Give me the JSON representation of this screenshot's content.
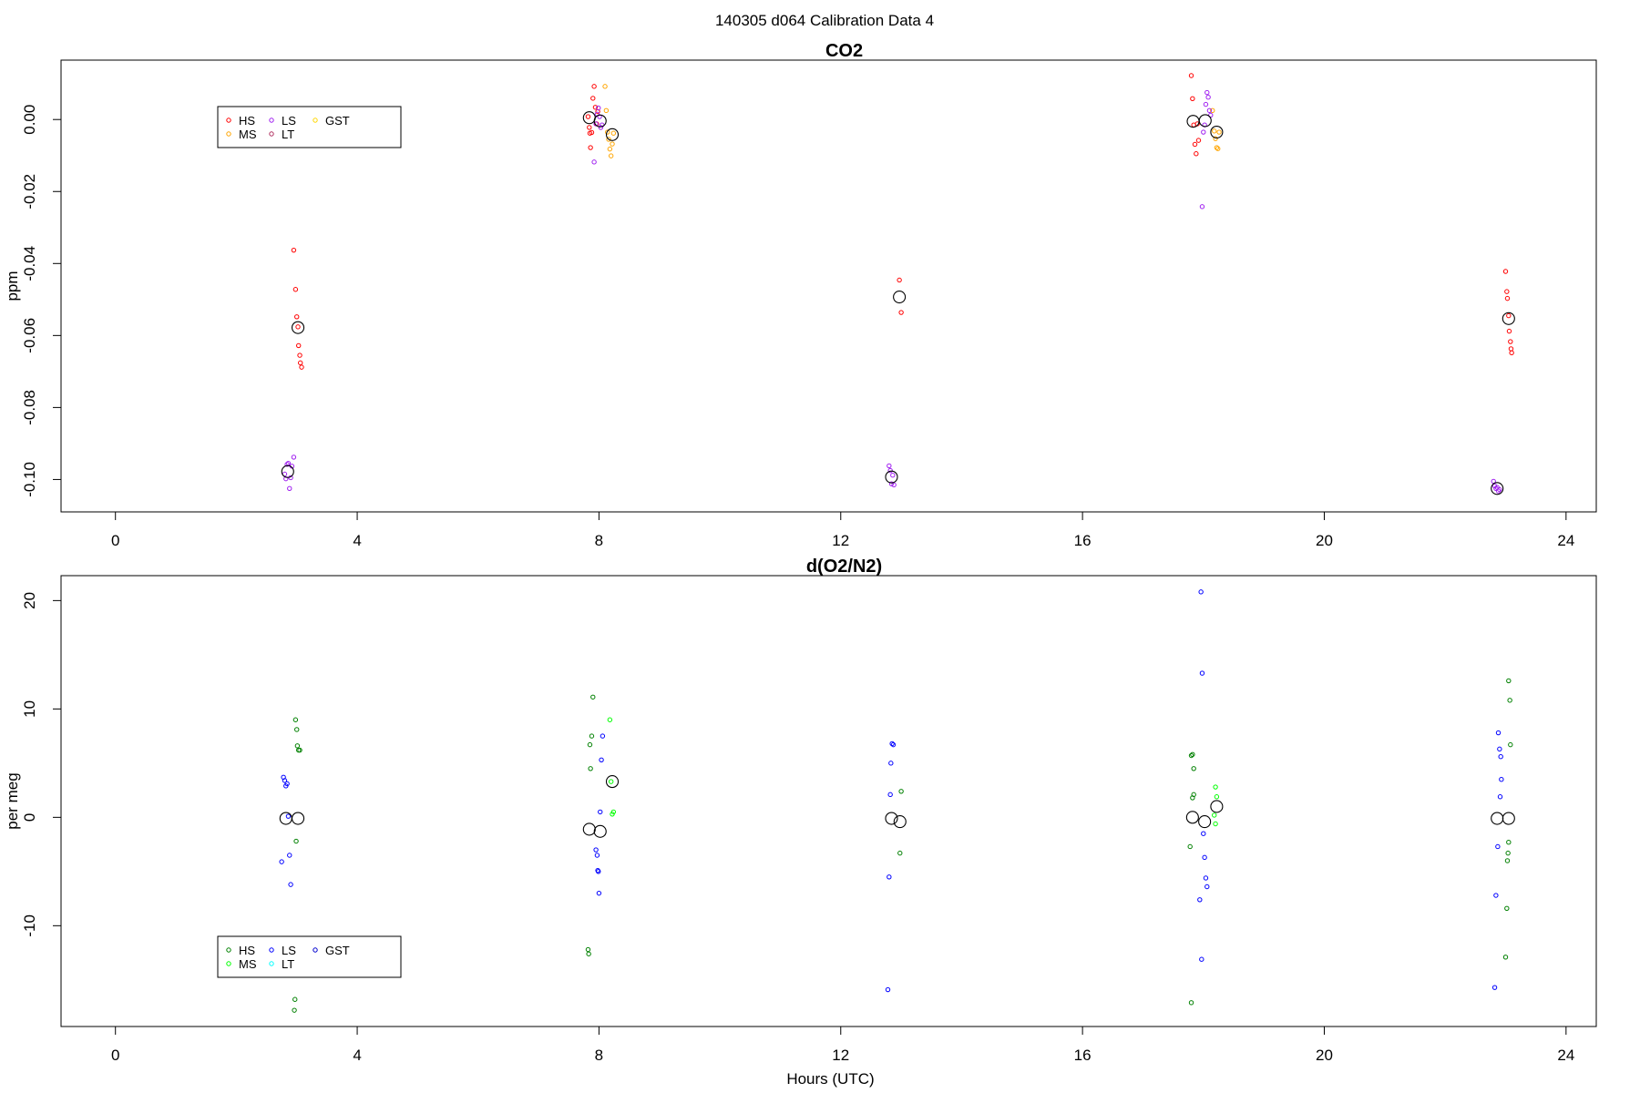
{
  "figure_title": "140305   d064   Calibration Data 4",
  "chart_data": [
    {
      "type": "scatter",
      "title": "CO2",
      "xlabel": "",
      "ylabel": "ppm",
      "xlim": [
        -0.9,
        24.5
      ],
      "ylim": [
        -0.109,
        0.0165
      ],
      "xticks": [
        0,
        4,
        8,
        12,
        16,
        20,
        24
      ],
      "yticks": [
        -0.1,
        -0.08,
        -0.06,
        -0.04,
        -0.02,
        0.0
      ],
      "ytick_labels": [
        "-0.10",
        "-0.08",
        "-0.06",
        "-0.04",
        "-0.02",
        "0.00"
      ],
      "grid": false,
      "legend": {
        "placement": "top-left",
        "entries": [
          {
            "label": "HS",
            "color": "#ff0000"
          },
          {
            "label": "MS",
            "color": "#ffa500"
          },
          {
            "label": "LS",
            "color": "#a020f0"
          },
          {
            "label": "LT",
            "color": "#b03060"
          },
          {
            "label": "GST",
            "color": "#ffd700"
          }
        ]
      },
      "series": [
        {
          "name": "HS",
          "color": "#ff0000",
          "points": [
            [
              2.95,
              -0.0363
            ],
            [
              2.98,
              -0.0472
            ],
            [
              3.0,
              -0.0548
            ],
            [
              3.02,
              -0.0576
            ],
            [
              3.03,
              -0.0628
            ],
            [
              3.05,
              -0.0655
            ],
            [
              3.06,
              -0.0676
            ],
            [
              3.08,
              -0.0688
            ],
            [
              7.82,
              0.0008
            ],
            [
              7.84,
              -0.0022
            ],
            [
              7.85,
              -0.0038
            ],
            [
              7.86,
              -0.0078
            ],
            [
              7.88,
              -0.0036
            ],
            [
              7.9,
              0.0059
            ],
            [
              7.92,
              0.0092
            ],
            [
              7.94,
              0.0034
            ],
            [
              7.96,
              -0.0012
            ],
            [
              7.98,
              0.0022
            ],
            [
              12.97,
              -0.0446
            ],
            [
              13.0,
              -0.0536
            ],
            [
              17.8,
              0.0122
            ],
            [
              17.82,
              0.0058
            ],
            [
              17.84,
              -0.0015
            ],
            [
              17.86,
              -0.0069
            ],
            [
              17.88,
              -0.0095
            ],
            [
              17.9,
              -0.0012
            ],
            [
              17.92,
              -0.0058
            ],
            [
              23.0,
              -0.0422
            ],
            [
              23.02,
              -0.0478
            ],
            [
              23.03,
              -0.0497
            ],
            [
              23.05,
              -0.0545
            ],
            [
              23.06,
              -0.0588
            ],
            [
              23.08,
              -0.0617
            ],
            [
              23.09,
              -0.0637
            ],
            [
              23.1,
              -0.0648
            ]
          ]
        },
        {
          "name": "MS",
          "color": "#ffa500",
          "points": [
            [
              8.1,
              0.0092
            ],
            [
              8.12,
              0.0025
            ],
            [
              8.14,
              -0.0035
            ],
            [
              8.16,
              -0.0055
            ],
            [
              8.18,
              -0.0082
            ],
            [
              8.2,
              -0.0101
            ],
            [
              8.22,
              -0.0068
            ],
            [
              8.24,
              -0.0038
            ],
            [
              18.15,
              0.0025
            ],
            [
              18.18,
              -0.0032
            ],
            [
              18.2,
              -0.0053
            ],
            [
              18.22,
              -0.0078
            ],
            [
              18.24,
              -0.0081
            ],
            [
              18.26,
              -0.0035
            ]
          ]
        },
        {
          "name": "LS",
          "color": "#a020f0",
          "points": [
            [
              2.8,
              -0.0985
            ],
            [
              2.82,
              -0.0998
            ],
            [
              2.84,
              -0.0958
            ],
            [
              2.86,
              -0.0955
            ],
            [
              2.88,
              -0.1025
            ],
            [
              2.9,
              -0.0995
            ],
            [
              2.92,
              -0.0963
            ],
            [
              2.95,
              -0.0938
            ],
            [
              7.92,
              -0.0118
            ],
            [
              7.95,
              -0.0012
            ],
            [
              7.97,
              0.0015
            ],
            [
              7.99,
              0.0032
            ],
            [
              8.01,
              0.0008
            ],
            [
              8.03,
              -0.0022
            ],
            [
              8.05,
              -0.0015
            ],
            [
              12.8,
              -0.0962
            ],
            [
              12.82,
              -0.0975
            ],
            [
              12.84,
              -0.1012
            ],
            [
              12.86,
              -0.0988
            ],
            [
              12.88,
              -0.1015
            ],
            [
              17.98,
              -0.0242
            ],
            [
              18.0,
              -0.0035
            ],
            [
              18.02,
              -0.0015
            ],
            [
              18.04,
              0.0042
            ],
            [
              18.06,
              0.0075
            ],
            [
              18.08,
              0.0062
            ],
            [
              18.1,
              0.0025
            ],
            [
              18.12,
              0.0012
            ],
            [
              22.8,
              -0.1005
            ],
            [
              22.82,
              -0.1018
            ],
            [
              22.84,
              -0.1025
            ],
            [
              22.86,
              -0.1022
            ],
            [
              22.88,
              -0.1032
            ],
            [
              22.9,
              -0.1028
            ]
          ]
        },
        {
          "name": "Mean",
          "color": "#000000",
          "marker": "large-circle",
          "points": [
            [
              2.85,
              -0.0978
            ],
            [
              3.02,
              -0.0578
            ],
            [
              7.84,
              0.0005
            ],
            [
              8.02,
              -0.0004
            ],
            [
              8.22,
              -0.0042
            ],
            [
              12.84,
              -0.0993
            ],
            [
              12.97,
              -0.0493
            ],
            [
              17.83,
              -0.0005
            ],
            [
              18.03,
              -0.0003
            ],
            [
              18.22,
              -0.0035
            ],
            [
              22.86,
              -0.1025
            ],
            [
              23.05,
              -0.0553
            ]
          ]
        }
      ]
    },
    {
      "type": "scatter",
      "title": "d(O2/N2)",
      "xlabel": "Hours (UTC)",
      "ylabel": "per meg",
      "xlim": [
        -0.9,
        24.5
      ],
      "ylim": [
        -19.3,
        22.3
      ],
      "xticks": [
        0,
        4,
        8,
        12,
        16,
        20,
        24
      ],
      "yticks": [
        -10,
        0,
        10,
        20
      ],
      "ytick_labels": [
        "-10",
        "0",
        "10",
        "20"
      ],
      "grid": false,
      "legend": {
        "placement": "bottom-left",
        "entries": [
          {
            "label": "HS",
            "color": "#008000"
          },
          {
            "label": "MS",
            "color": "#00ff00"
          },
          {
            "label": "LS",
            "color": "#0000ff"
          },
          {
            "label": "LT",
            "color": "#00ffff"
          },
          {
            "label": "GST",
            "color": "#0000cd"
          }
        ]
      },
      "series": [
        {
          "name": "HS",
          "color": "#008000",
          "points": [
            [
              2.98,
              9.0
            ],
            [
              3.0,
              8.1
            ],
            [
              3.01,
              6.6
            ],
            [
              3.03,
              6.2
            ],
            [
              3.05,
              6.2
            ],
            [
              2.99,
              -2.2
            ],
            [
              2.97,
              -16.8
            ],
            [
              2.96,
              -17.8
            ],
            [
              7.82,
              -12.2
            ],
            [
              7.83,
              -12.6
            ],
            [
              7.85,
              6.7
            ],
            [
              7.86,
              4.5
            ],
            [
              7.88,
              7.5
            ],
            [
              7.9,
              11.1
            ],
            [
              13.0,
              2.4
            ],
            [
              12.98,
              -3.3
            ],
            [
              17.78,
              -2.7
            ],
            [
              17.8,
              5.7
            ],
            [
              17.82,
              5.8
            ],
            [
              17.84,
              4.5
            ],
            [
              17.82,
              1.8
            ],
            [
              17.84,
              2.1
            ],
            [
              17.8,
              -17.1
            ],
            [
              23.05,
              12.6
            ],
            [
              23.07,
              10.8
            ],
            [
              23.08,
              6.7
            ],
            [
              23.05,
              -2.3
            ],
            [
              23.04,
              -3.3
            ],
            [
              23.03,
              -4.0
            ],
            [
              23.02,
              -8.4
            ],
            [
              23.0,
              -12.9
            ]
          ]
        },
        {
          "name": "MS",
          "color": "#00ff00",
          "points": [
            [
              8.18,
              9.0
            ],
            [
              8.2,
              3.3
            ],
            [
              8.22,
              0.3
            ],
            [
              8.24,
              0.5
            ],
            [
              18.2,
              2.8
            ],
            [
              18.22,
              1.9
            ],
            [
              18.18,
              0.2
            ],
            [
              18.2,
              -0.6
            ]
          ]
        },
        {
          "name": "LS",
          "color": "#0000ff",
          "points": [
            [
              2.78,
              3.7
            ],
            [
              2.8,
              3.4
            ],
            [
              2.82,
              2.9
            ],
            [
              2.84,
              3.1
            ],
            [
              2.86,
              0.1
            ],
            [
              2.88,
              -3.5
            ],
            [
              2.75,
              -4.1
            ],
            [
              2.9,
              -6.2
            ],
            [
              7.95,
              -3.0
            ],
            [
              7.97,
              -3.5
            ],
            [
              7.99,
              -5.0
            ],
            [
              8.0,
              -7.0
            ],
            [
              8.02,
              0.5
            ],
            [
              8.04,
              5.3
            ],
            [
              8.06,
              7.5
            ],
            [
              7.98,
              -4.9
            ],
            [
              12.85,
              6.8
            ],
            [
              12.87,
              6.7
            ],
            [
              12.83,
              5.0
            ],
            [
              12.82,
              2.1
            ],
            [
              12.8,
              -5.5
            ],
            [
              12.78,
              -15.9
            ],
            [
              17.96,
              20.8
            ],
            [
              17.98,
              13.3
            ],
            [
              18.0,
              -1.5
            ],
            [
              18.02,
              -3.7
            ],
            [
              18.04,
              -5.6
            ],
            [
              18.06,
              -6.4
            ],
            [
              17.94,
              -7.6
            ],
            [
              17.97,
              -13.1
            ],
            [
              22.88,
              7.8
            ],
            [
              22.9,
              6.3
            ],
            [
              22.92,
              5.6
            ],
            [
              22.93,
              3.5
            ],
            [
              22.91,
              1.9
            ],
            [
              22.87,
              -2.7
            ],
            [
              22.84,
              -7.2
            ],
            [
              22.82,
              -15.7
            ]
          ]
        },
        {
          "name": "Mean",
          "color": "#000000",
          "marker": "large-circle",
          "points": [
            [
              2.82,
              -0.1
            ],
            [
              3.02,
              -0.1
            ],
            [
              7.84,
              -1.1
            ],
            [
              8.02,
              -1.3
            ],
            [
              8.22,
              3.3
            ],
            [
              12.84,
              -0.1
            ],
            [
              12.98,
              -0.4
            ],
            [
              17.82,
              0.0
            ],
            [
              18.02,
              -0.4
            ],
            [
              18.22,
              1.0
            ],
            [
              22.86,
              -0.1
            ],
            [
              23.05,
              -0.1
            ]
          ]
        }
      ]
    }
  ]
}
